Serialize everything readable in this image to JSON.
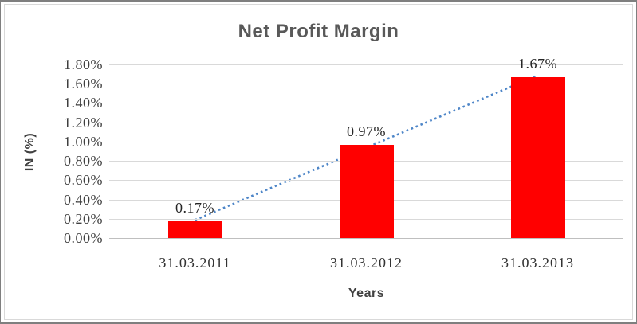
{
  "chart_data": {
    "type": "bar",
    "title": "Net Profit Margin",
    "xlabel": "Years",
    "ylabel": "IN (%)",
    "categories": [
      "31.03.2011",
      "31.03.2012",
      "31.03.2013"
    ],
    "values": [
      0.17,
      0.97,
      1.67
    ],
    "data_labels": [
      "0.17%",
      "0.97%",
      "1.67%"
    ],
    "y_ticks": [
      "0.00%",
      "0.20%",
      "0.40%",
      "0.60%",
      "0.80%",
      "1.00%",
      "1.20%",
      "1.40%",
      "1.60%",
      "1.80%"
    ],
    "ylim": [
      0,
      1.8
    ],
    "y_step": 0.2,
    "grid": true,
    "legend": "none",
    "series_name": "Net Profit Margin",
    "trendline": {
      "type": "linear",
      "style": "dotted"
    },
    "colors": {
      "bar": "#ff0000",
      "trendline": "#4e86c8",
      "gridline": "#d9d9d9",
      "axis_line": "#bfbfbf",
      "title_text": "#595959",
      "tick_text": "#3f3f3f",
      "data_label_text": "#262626",
      "axis_title_text": "#404040",
      "frame_border": "#7f7f7f",
      "chart_border": "#d9d9d9"
    }
  }
}
